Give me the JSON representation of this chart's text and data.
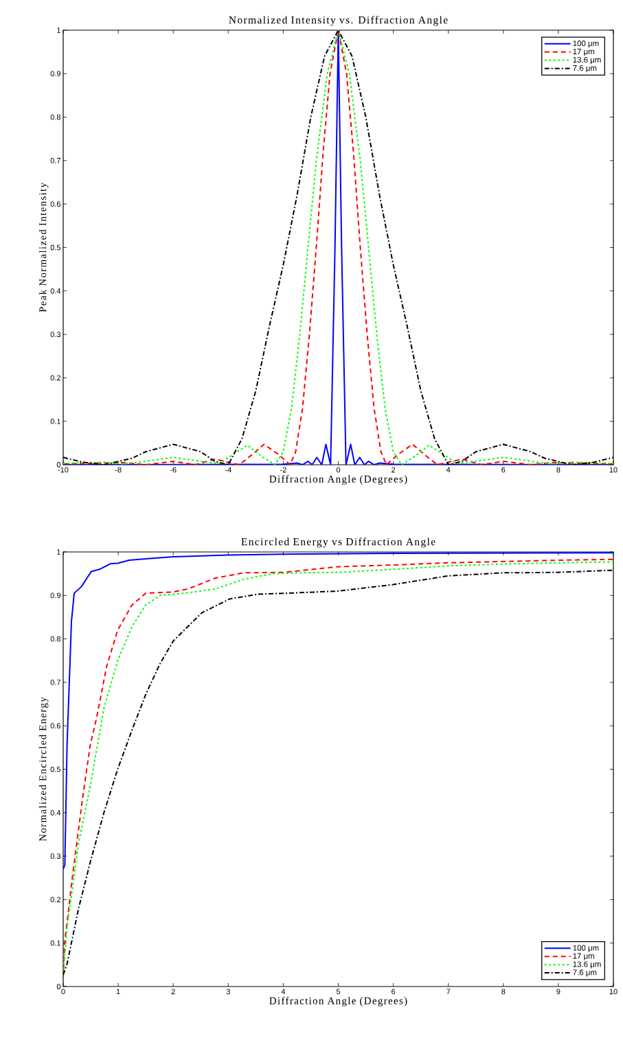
{
  "chart_data": [
    {
      "type": "line",
      "title": "Normalized Intensity vs. Diffraction Angle",
      "xlabel": "Diffraction Angle (Degrees)",
      "ylabel": "Peak Normalized Intensity",
      "xlim": [
        -10,
        10
      ],
      "ylim": [
        0,
        1
      ],
      "xticks": [
        -10,
        -8,
        -6,
        -4,
        -2,
        0,
        2,
        4,
        6,
        8,
        10
      ],
      "yticks": [
        0,
        0.1,
        0.2,
        0.3,
        0.4,
        0.5,
        0.6,
        0.7,
        0.8,
        0.9,
        1
      ],
      "grid": false,
      "legend": "top right",
      "marker": "none",
      "series": [
        {
          "name": "100 μm",
          "color": "#0000ff",
          "line_style": "solid",
          "x": [
            -10,
            -2,
            -1.5,
            -1.3,
            -1.1,
            -0.95,
            -0.78,
            -0.6,
            -0.45,
            -0.28,
            -0.12,
            0,
            0.12,
            0.28,
            0.45,
            0.6,
            0.78,
            0.95,
            1.1,
            1.3,
            1.5,
            2,
            10
          ],
          "values": [
            0,
            0.001,
            0.004,
            0,
            0.008,
            0,
            0.017,
            0,
            0.047,
            0,
            0.5,
            1,
            0.5,
            0,
            0.047,
            0,
            0.017,
            0,
            0.008,
            0,
            0.004,
            0.001,
            0
          ]
        },
        {
          "name": "17 μm",
          "color": "#ff0000",
          "line_style": "dashed",
          "x": [
            -10,
            -7.8,
            -7,
            -6,
            -5.2,
            -4.5,
            -3.6,
            -3.2,
            -2.7,
            -2.2,
            -1.75,
            -1.55,
            -1.3,
            -1.05,
            -0.8,
            -0.55,
            -0.3,
            0,
            0.3,
            0.55,
            0.8,
            1.05,
            1.3,
            1.55,
            1.75,
            2.2,
            2.7,
            3.2,
            3.6,
            4.5,
            5.2,
            6,
            7,
            7.8,
            10
          ],
          "values": [
            0.002,
            0.005,
            0,
            0.008,
            0,
            0.013,
            0,
            0.02,
            0.047,
            0.025,
            0,
            0.03,
            0.13,
            0.3,
            0.5,
            0.72,
            0.9,
            1,
            0.9,
            0.72,
            0.5,
            0.3,
            0.13,
            0.03,
            0,
            0.025,
            0.047,
            0.02,
            0,
            0.013,
            0,
            0.008,
            0,
            0.005,
            0.002
          ]
        },
        {
          "name": "13.6 μm",
          "color": "#00ff00",
          "line_style": "dotted",
          "x": [
            -10,
            -8.5,
            -7.8,
            -7,
            -6,
            -5,
            -4.3,
            -3.8,
            -3.3,
            -2.8,
            -2.3,
            -2,
            -1.7,
            -1.4,
            -1.1,
            -0.8,
            -0.4,
            0,
            0.4,
            0.8,
            1.1,
            1.4,
            1.7,
            2,
            2.3,
            2.8,
            3.3,
            3.8,
            4.3,
            5,
            6,
            7,
            7.8,
            8.5,
            10
          ],
          "values": [
            0.003,
            0.006,
            0.002,
            0.008,
            0.017,
            0.008,
            0.003,
            0.025,
            0.045,
            0.02,
            0,
            0.03,
            0.13,
            0.3,
            0.5,
            0.7,
            0.9,
            1,
            0.9,
            0.7,
            0.5,
            0.3,
            0.13,
            0.03,
            0,
            0.02,
            0.045,
            0.025,
            0.003,
            0.008,
            0.017,
            0.008,
            0.002,
            0.006,
            0.003
          ]
        },
        {
          "name": "7.6 μm",
          "color": "#000000",
          "line_style": "dashdot",
          "x": [
            -10,
            -9.3,
            -8.5,
            -7.5,
            -7,
            -6,
            -5,
            -4.5,
            -4,
            -3.5,
            -3,
            -2.5,
            -2,
            -1.5,
            -1,
            -0.5,
            0,
            0.5,
            1,
            1.5,
            2,
            2.5,
            3,
            3.5,
            4,
            4.5,
            5,
            6,
            7,
            7.5,
            8.5,
            9.3,
            10
          ],
          "values": [
            0.017,
            0.006,
            0,
            0.015,
            0.03,
            0.047,
            0.03,
            0.008,
            0,
            0.06,
            0.17,
            0.32,
            0.46,
            0.62,
            0.8,
            0.94,
            1,
            0.94,
            0.8,
            0.62,
            0.46,
            0.32,
            0.17,
            0.06,
            0,
            0.008,
            0.03,
            0.047,
            0.03,
            0.015,
            0,
            0.006,
            0.017
          ]
        }
      ]
    },
    {
      "type": "line",
      "title": "Encircled Energy vs Diffraction Angle",
      "xlabel": "Diffraction Angle (Degrees)",
      "ylabel": "Normalized Encircled Energy",
      "xlim": [
        0,
        10
      ],
      "ylim": [
        0,
        1
      ],
      "xticks": [
        0,
        1,
        2,
        3,
        4,
        5,
        6,
        7,
        8,
        9,
        10
      ],
      "yticks": [
        0,
        0.1,
        0.2,
        0.3,
        0.4,
        0.5,
        0.6,
        0.7,
        0.8,
        0.9,
        1
      ],
      "grid": false,
      "legend": "bottom right",
      "marker": "none",
      "series": [
        {
          "name": "100 μm",
          "color": "#0000ff",
          "line_style": "solid",
          "x": [
            0,
            0.03,
            0.07,
            0.15,
            0.2,
            0.33,
            0.51,
            0.66,
            0.86,
            0.99,
            1.2,
            1.5,
            2,
            3,
            4,
            6,
            10
          ],
          "values": [
            0.27,
            0.28,
            0.555,
            0.84,
            0.905,
            0.92,
            0.955,
            0.96,
            0.973,
            0.974,
            0.981,
            0.984,
            0.989,
            0.993,
            0.995,
            0.997,
            0.998
          ]
        },
        {
          "name": "17 μm",
          "color": "#ff0000",
          "line_style": "dashed",
          "x": [
            0,
            0.03,
            0.18,
            0.36,
            0.49,
            0.61,
            0.79,
            0.99,
            1.25,
            1.5,
            2,
            2.27,
            2.77,
            3.28,
            4,
            5,
            6,
            7,
            8,
            9,
            10
          ],
          "values": [
            0.02,
            0.105,
            0.265,
            0.44,
            0.555,
            0.62,
            0.737,
            0.82,
            0.878,
            0.905,
            0.908,
            0.915,
            0.94,
            0.952,
            0.953,
            0.966,
            0.97,
            0.975,
            0.978,
            0.981,
            0.983
          ]
        },
        {
          "name": "13.6 μm",
          "color": "#00ff00",
          "line_style": "dotted",
          "x": [
            0,
            0.07,
            0.28,
            0.49,
            0.74,
            0.99,
            1.25,
            1.5,
            1.76,
            2.27,
            2.77,
            3.28,
            3.8,
            4.3,
            5,
            6,
            7,
            8,
            9,
            10
          ],
          "values": [
            0.03,
            0.136,
            0.33,
            0.46,
            0.64,
            0.75,
            0.828,
            0.878,
            0.9,
            0.906,
            0.915,
            0.937,
            0.95,
            0.952,
            0.953,
            0.96,
            0.968,
            0.972,
            0.975,
            0.977
          ]
        },
        {
          "name": "7.6 μm",
          "color": "#000000",
          "line_style": "dashdot",
          "x": [
            0,
            0.07,
            0.28,
            0.49,
            0.74,
            0.99,
            1.25,
            1.5,
            1.76,
            2,
            2.52,
            3.03,
            3.55,
            4.05,
            5,
            6,
            7,
            8,
            9,
            10
          ],
          "values": [
            0.027,
            0.052,
            0.18,
            0.285,
            0.4,
            0.5,
            0.59,
            0.672,
            0.743,
            0.795,
            0.86,
            0.892,
            0.903,
            0.905,
            0.91,
            0.925,
            0.945,
            0.952,
            0.953,
            0.958
          ]
        }
      ]
    }
  ]
}
